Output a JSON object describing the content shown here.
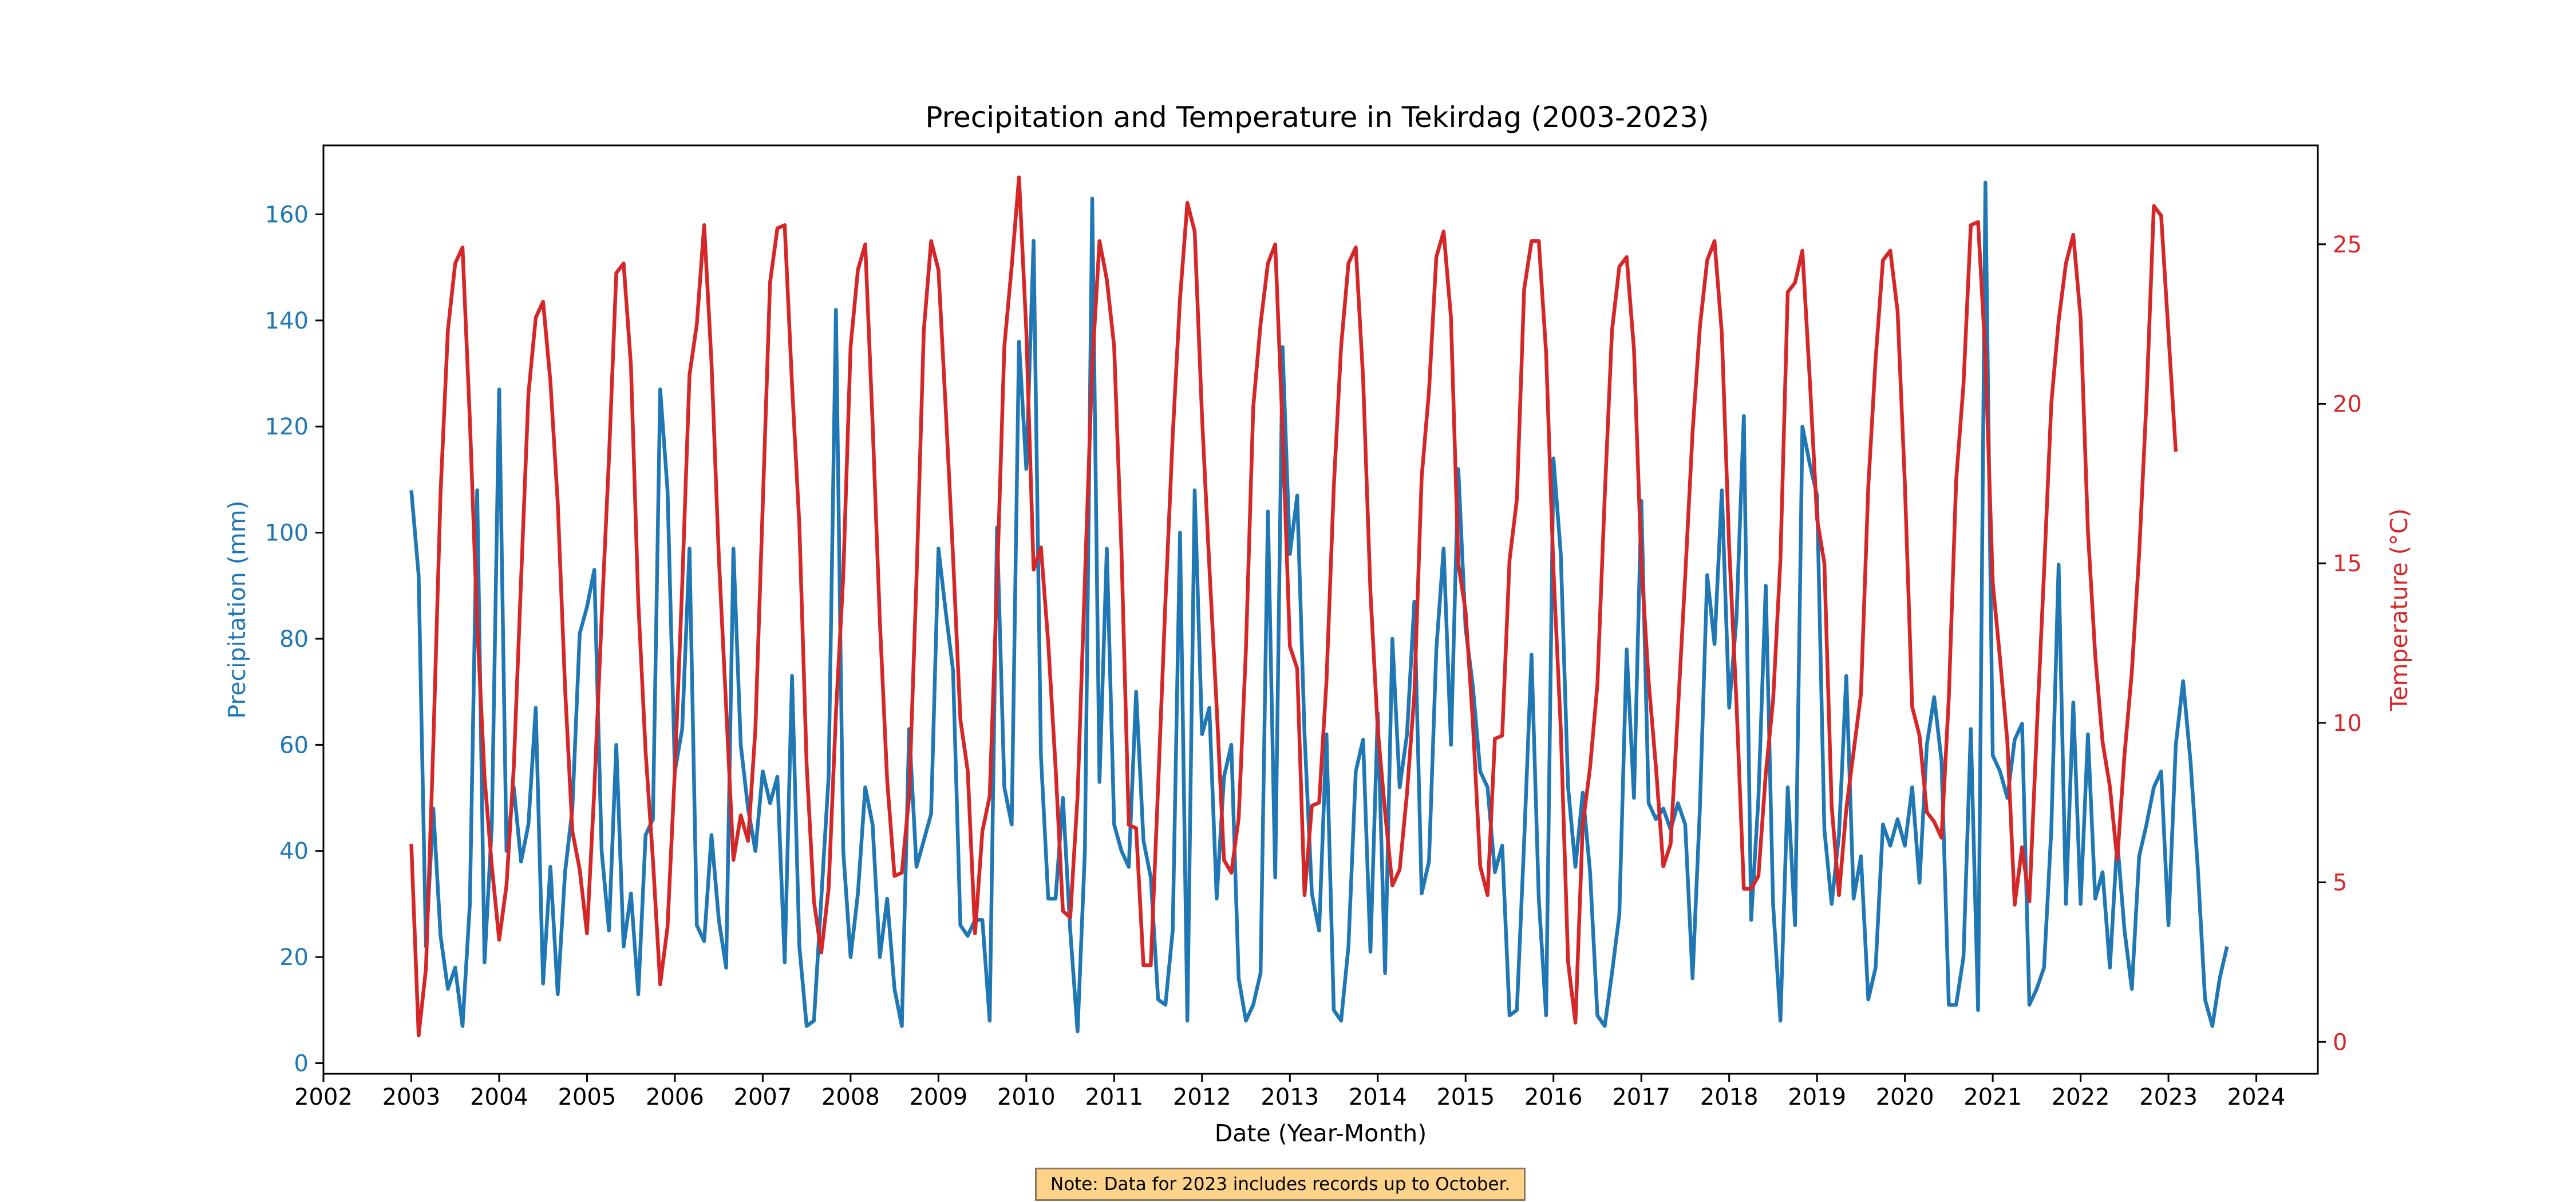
{
  "chart_data": {
    "type": "line",
    "title": "Precipitation and Temperature in Tekirdag (2003-2023)",
    "xlabel": "Date (Year-Month)",
    "ylabel": "Precipitation (mm)",
    "y2label": "Temperature (°C)",
    "xlim": [
      2002.0,
      2024.7
    ],
    "ylim": [
      -2,
      173
    ],
    "y2lim": [
      -1,
      28.1
    ],
    "x_ticks": [
      "2002",
      "2003",
      "2004",
      "2005",
      "2006",
      "2007",
      "2008",
      "2009",
      "2010",
      "2011",
      "2012",
      "2013",
      "2014",
      "2015",
      "2016",
      "2017",
      "2018",
      "2019",
      "2020",
      "2021",
      "2022",
      "2023",
      "2024"
    ],
    "y_ticks": [
      "0",
      "20",
      "40",
      "60",
      "80",
      "100",
      "120",
      "140",
      "160"
    ],
    "y2_ticks": [
      "0",
      "5",
      "10",
      "15",
      "20",
      "25"
    ],
    "grid": false,
    "colors": {
      "precipitation": "#1f77b4",
      "temperature": "#d62728"
    },
    "x_start": "2003-01",
    "x_step": "monthly",
    "series": [
      {
        "axis": "left",
        "values": [
          108,
          92,
          22,
          48,
          24,
          14,
          18,
          7,
          30,
          108,
          19,
          45,
          127,
          40,
          52,
          38,
          45,
          67,
          15,
          37,
          13,
          36,
          48,
          81,
          86,
          93,
          40,
          25,
          60,
          22,
          32,
          13,
          43,
          46,
          127,
          108,
          55,
          63,
          97,
          26,
          23,
          43,
          27,
          18,
          97,
          60,
          48,
          40,
          55,
          49,
          54,
          19,
          73,
          22,
          7,
          8,
          31,
          54,
          142,
          40,
          20,
          32,
          52,
          45,
          20,
          31,
          14,
          7,
          63,
          37,
          42,
          47,
          97,
          85,
          74,
          26,
          24,
          27,
          27,
          8,
          101,
          52,
          45,
          136,
          112,
          155,
          58,
          31,
          31,
          50,
          25,
          6,
          40,
          163,
          53,
          97,
          45,
          40,
          37,
          70,
          42,
          35,
          12,
          11,
          25,
          100,
          8,
          108,
          62,
          67,
          31,
          54,
          60,
          16,
          8,
          11,
          17,
          104,
          35,
          135,
          96,
          107,
          62,
          32,
          25,
          62,
          10,
          8,
          22,
          55,
          61,
          21,
          66,
          17,
          80,
          52,
          62,
          87,
          32,
          38,
          78,
          97,
          60,
          112,
          82,
          71,
          55,
          52,
          36,
          41,
          9,
          10,
          42,
          77,
          31,
          9,
          114,
          96,
          52,
          37,
          51,
          36,
          9,
          7,
          17,
          28,
          78,
          50,
          106,
          49,
          46,
          48,
          44,
          49,
          45,
          16,
          48,
          92,
          79,
          108,
          67,
          84,
          122,
          27,
          50,
          90,
          30,
          8,
          52,
          26,
          120,
          113,
          107,
          44,
          30,
          43,
          73,
          31,
          39,
          12,
          18,
          45,
          41,
          46,
          41,
          52,
          34,
          60,
          69,
          57,
          11,
          11,
          20,
          63,
          10,
          166,
          58,
          55,
          50,
          61,
          64,
          11,
          14,
          18,
          44,
          94,
          30,
          68,
          30,
          62,
          31,
          36,
          18,
          42,
          25,
          14,
          39,
          45,
          52,
          55,
          26,
          60,
          72,
          57,
          37,
          12,
          7,
          16,
          22
        ]
      },
      {
        "axis": "right",
        "values": [
          6.2,
          0.2,
          2.3,
          9.3,
          17.2,
          22.3,
          24.4,
          24.9,
          19.5,
          13.1,
          8.3,
          5.5,
          3.2,
          4.9,
          8.6,
          14.5,
          20.3,
          22.7,
          23.2,
          20.7,
          16.9,
          11.1,
          6.6,
          5.4,
          3.4,
          7.9,
          13.3,
          18.3,
          24.1,
          24.4,
          21.2,
          13.8,
          9.1,
          5.7,
          1.8,
          3.6,
          8.5,
          14.3,
          20.9,
          22.5,
          25.6,
          21.3,
          15.2,
          10.5,
          5.7,
          7.1,
          6.3,
          9.8,
          16.8,
          23.8,
          25.5,
          25.6,
          20.6,
          16.2,
          8.7,
          4.4,
          2.8,
          4.8,
          10.3,
          14.6,
          21.8,
          24.2,
          25.0,
          19.4,
          13.2,
          8.2,
          5.2,
          5.3,
          7.7,
          14.5,
          22.3,
          25.1,
          24.2,
          19.8,
          15.2,
          10.1,
          8.5,
          3.4,
          6.6,
          7.7,
          14.4,
          21.8,
          24.3,
          27.1,
          22.3,
          14.8,
          15.5,
          12.5,
          8.6,
          4.1,
          3.9,
          7.7,
          14.5,
          21.2,
          25.1,
          23.9,
          21.8,
          15.4,
          6.8,
          6.7,
          2.4,
          2.4,
          8.0,
          13.8,
          19.0,
          23.3,
          26.3,
          25.4,
          19.6,
          14.9,
          10.5,
          5.7,
          5.3,
          7.0,
          12.3,
          19.9,
          22.5,
          24.4,
          25.0,
          19.2,
          12.4,
          11.7,
          4.6,
          7.4,
          7.5,
          11.3,
          17.4,
          21.8,
          24.4,
          24.9,
          20.8,
          14.1,
          9.8,
          7.2,
          4.9,
          5.4,
          7.8,
          10.9,
          17.7,
          20.4,
          24.6,
          25.4,
          22.7,
          15.0,
          13.5,
          10.0,
          5.5,
          4.6,
          9.5,
          9.6,
          15.1,
          17.0,
          23.6,
          25.1,
          25.1,
          21.6,
          14.8,
          9.8,
          2.5,
          0.6,
          6.8,
          8.6,
          11.2,
          17.1,
          22.3,
          24.3,
          24.6,
          21.7,
          15.0,
          11.3,
          8.6,
          5.5,
          6.2,
          10.4,
          14.6,
          19.1,
          22.4,
          24.5,
          25.1,
          22.2,
          15.5,
          10.6,
          4.8,
          4.8,
          5.2,
          8.4,
          10.7,
          15.1,
          23.5,
          23.8,
          24.8,
          20.8,
          16.4,
          15.0,
          7.4,
          4.6,
          7.3,
          9.1,
          10.9,
          17.4,
          21.4,
          24.5,
          24.8,
          22.9,
          17.5,
          10.5,
          9.6,
          7.2,
          6.9,
          6.4,
          10.8,
          17.6,
          20.6,
          25.6,
          25.7,
          21.5,
          14.4,
          12.0,
          9.4,
          4.3,
          6.1,
          4.4,
          9.7,
          14.7,
          20.0,
          22.6,
          24.4,
          25.3,
          22.7,
          16.0,
          12.1,
          9.4,
          8.0,
          5.7,
          9.0,
          11.6,
          15.3,
          20.1,
          26.2,
          25.9,
          22.2,
          18.5
        ]
      }
    ]
  },
  "note": "Note: Data for 2023 includes records up to October."
}
